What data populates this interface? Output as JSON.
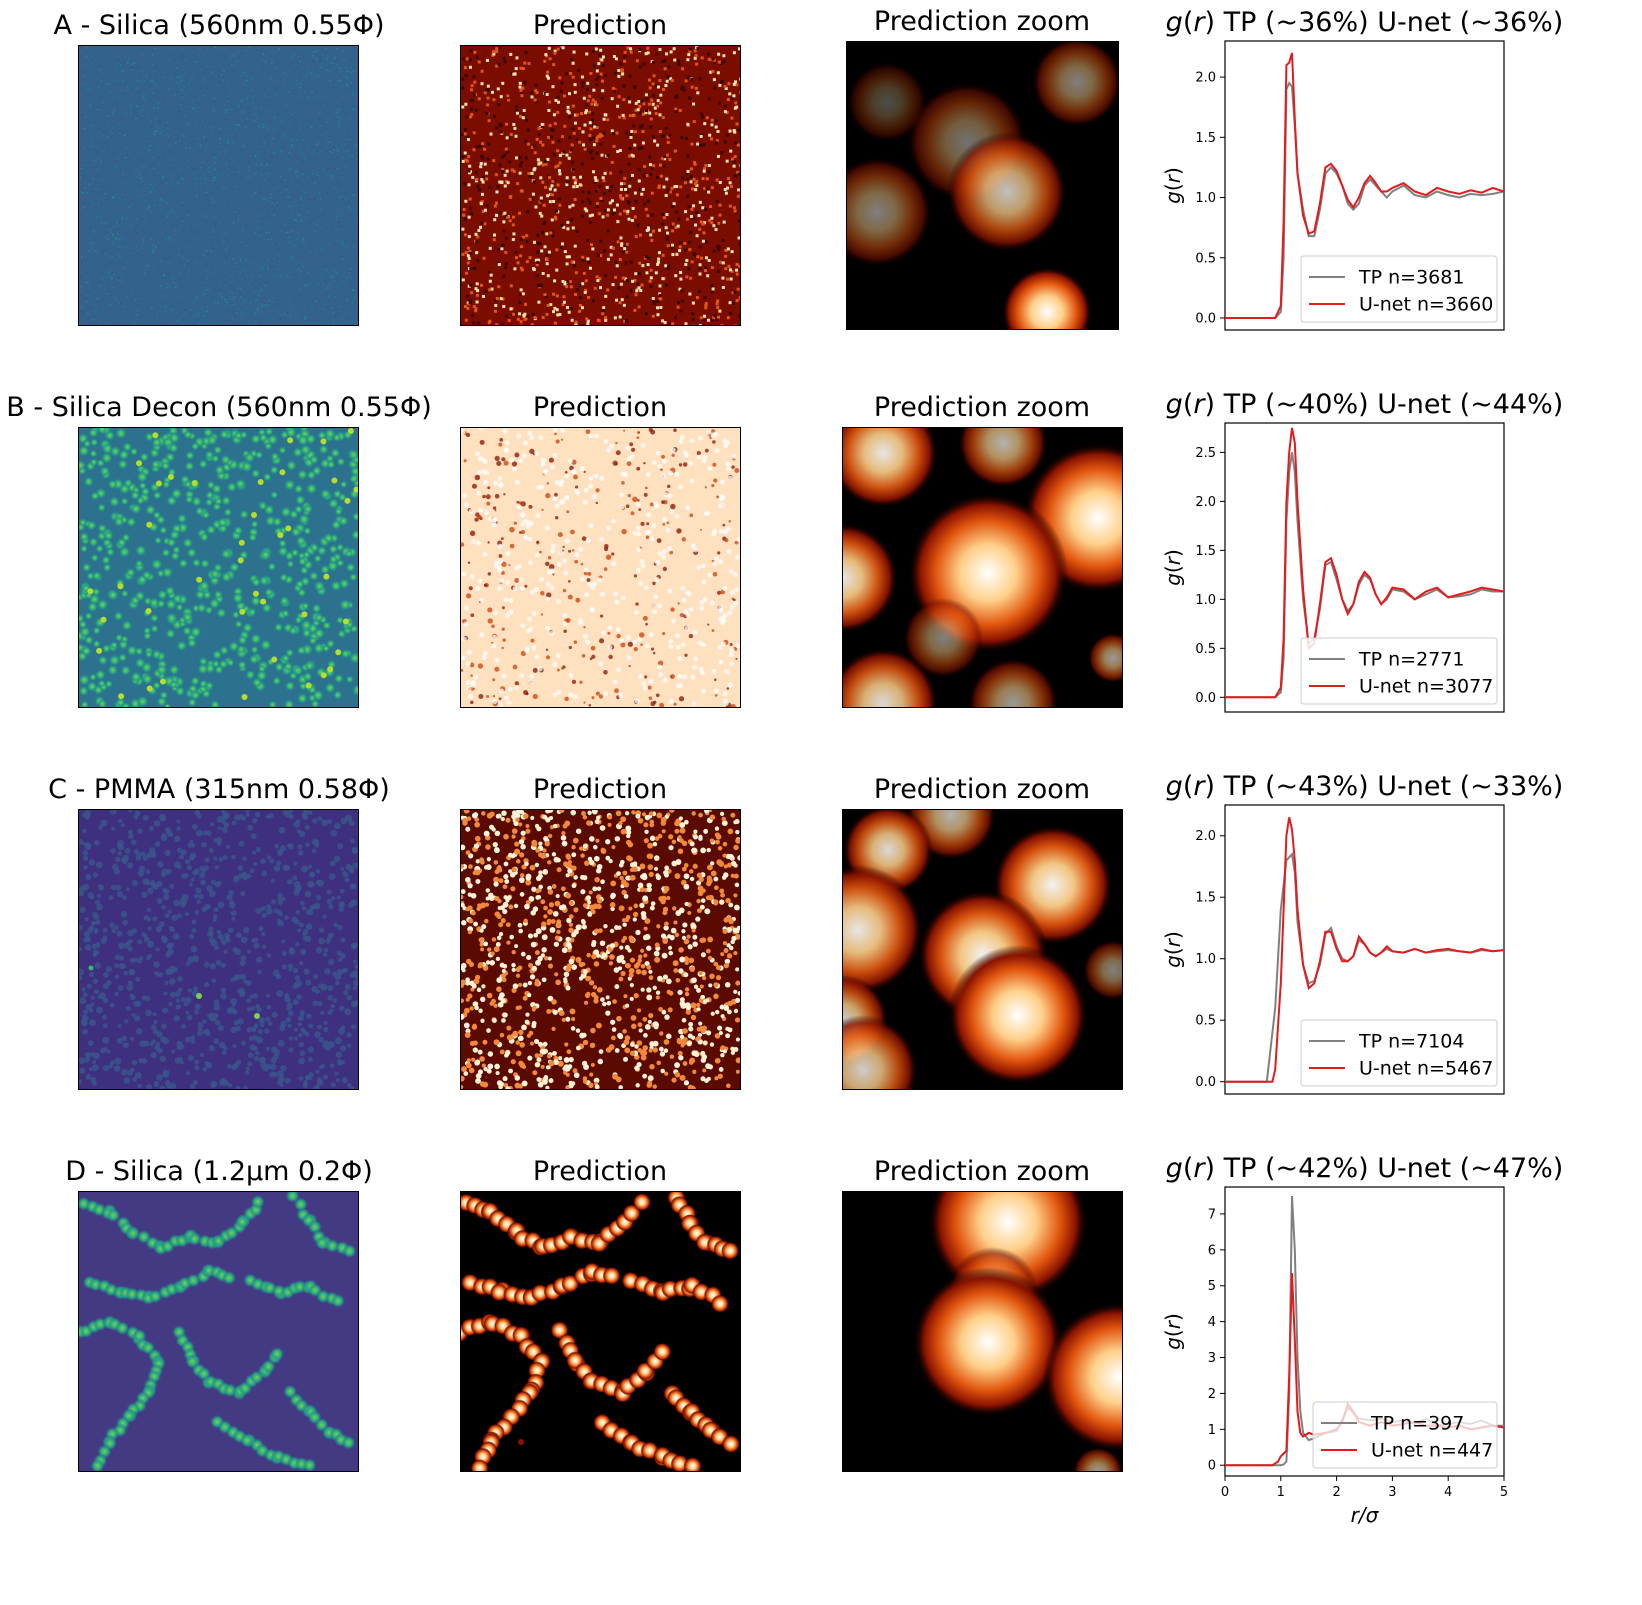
{
  "rows": [
    {
      "row_title": "A - Silica (560nm 0.55Φ)",
      "prediction_title": "Prediction",
      "zoom_title": "Prediction zoom",
      "gr_title": "g(r) TP (~36%) U-net (~36%)",
      "raw_style": "noisy",
      "pred_style": "grainy",
      "zoom_style": "dim"
    },
    {
      "row_title": "B - Silica Decon (560nm 0.55Φ)",
      "prediction_title": "Prediction",
      "zoom_title": "Prediction zoom",
      "gr_title": "g(r) TP (~40%) U-net (~44%)",
      "raw_style": "dense-bright",
      "pred_style": "dense-light",
      "zoom_style": "blobs"
    },
    {
      "row_title": "C - PMMA (315nm 0.58Φ)",
      "prediction_title": "Prediction",
      "zoom_title": "Prediction zoom",
      "gr_title": "g(r) TP (~43%) U-net (~33%)",
      "raw_style": "dense-dim",
      "pred_style": "dense-mixed",
      "zoom_style": "blobs"
    },
    {
      "row_title": "D - Silica (1.2µm 0.2Φ)",
      "prediction_title": "Prediction",
      "zoom_title": "Prediction zoom",
      "gr_title": "g(r) TP (~42%) U-net (~47%)",
      "raw_style": "chains",
      "pred_style": "chains",
      "zoom_style": "chain-blobs"
    }
  ],
  "colors": {
    "tp": "#808080",
    "unet": "#e41a1c",
    "viridis_bg": "#3b528b",
    "fire_dark": "#000000"
  },
  "chart_data": [
    {
      "type": "line",
      "title": "g(r) TP (~36%) U-net (~36%)",
      "xlabel": "",
      "ylabel": "g(r)",
      "xlim": [
        0,
        5
      ],
      "ylim": [
        -0.1,
        2.3
      ],
      "yticks": [
        "0.0",
        "0.5",
        "1.0",
        "1.5",
        "2.0"
      ],
      "ytick_values": [
        0,
        0.5,
        1.0,
        1.5,
        2.0
      ],
      "legend_position": "lower-right",
      "series": [
        {
          "name": "TP n=3681",
          "color": "#808080",
          "x": [
            0,
            0.9,
            1.0,
            1.05,
            1.1,
            1.15,
            1.2,
            1.25,
            1.3,
            1.4,
            1.5,
            1.6,
            1.7,
            1.8,
            1.9,
            2.0,
            2.1,
            2.2,
            2.3,
            2.4,
            2.5,
            2.6,
            2.7,
            2.8,
            2.9,
            3.0,
            3.2,
            3.4,
            3.6,
            3.8,
            4.0,
            4.2,
            4.4,
            4.6,
            4.8,
            5.0
          ],
          "y": [
            0,
            0,
            0.05,
            0.5,
            1.9,
            1.95,
            1.92,
            1.6,
            1.2,
            0.9,
            0.68,
            0.68,
            0.9,
            1.2,
            1.25,
            1.2,
            1.1,
            0.95,
            0.9,
            0.95,
            1.1,
            1.15,
            1.1,
            1.05,
            1.0,
            1.05,
            1.1,
            1.02,
            1.0,
            1.05,
            1.02,
            1.0,
            1.03,
            1.02,
            1.03,
            1.05
          ]
        },
        {
          "name": "U-net n=3660",
          "color": "#e41a1c",
          "x": [
            0,
            0.9,
            1.0,
            1.05,
            1.1,
            1.15,
            1.2,
            1.25,
            1.3,
            1.4,
            1.5,
            1.6,
            1.7,
            1.8,
            1.9,
            2.0,
            2.1,
            2.2,
            2.3,
            2.4,
            2.5,
            2.6,
            2.7,
            2.8,
            2.9,
            3.0,
            3.2,
            3.4,
            3.6,
            3.8,
            4.0,
            4.2,
            4.4,
            4.6,
            4.8,
            5.0
          ],
          "y": [
            0,
            0,
            0.1,
            0.8,
            2.1,
            2.12,
            2.2,
            1.65,
            1.2,
            0.85,
            0.7,
            0.72,
            0.95,
            1.25,
            1.28,
            1.22,
            1.1,
            0.98,
            0.92,
            1.0,
            1.12,
            1.18,
            1.12,
            1.05,
            1.05,
            1.08,
            1.12,
            1.05,
            1.02,
            1.08,
            1.05,
            1.03,
            1.06,
            1.04,
            1.08,
            1.05
          ]
        }
      ]
    },
    {
      "type": "line",
      "title": "g(r) TP (~40%) U-net (~44%)",
      "xlabel": "",
      "ylabel": "g(r)",
      "xlim": [
        0,
        5
      ],
      "ylim": [
        -0.15,
        2.8
      ],
      "yticks": [
        "0.0",
        "0.5",
        "1.0",
        "1.5",
        "2.0",
        "2.5"
      ],
      "ytick_values": [
        0,
        0.5,
        1.0,
        1.5,
        2.0,
        2.5
      ],
      "legend_position": "lower-right",
      "series": [
        {
          "name": "TP n=2771",
          "color": "#808080",
          "x": [
            0,
            0.9,
            1.0,
            1.05,
            1.1,
            1.15,
            1.2,
            1.25,
            1.3,
            1.4,
            1.5,
            1.6,
            1.7,
            1.8,
            1.9,
            2.0,
            2.1,
            2.2,
            2.3,
            2.4,
            2.5,
            2.6,
            2.7,
            2.8,
            2.9,
            3.0,
            3.2,
            3.4,
            3.6,
            3.8,
            4.0,
            4.2,
            4.4,
            4.6,
            4.8,
            5.0
          ],
          "y": [
            0,
            0,
            0.05,
            0.4,
            1.8,
            2.3,
            2.5,
            2.3,
            1.8,
            1.0,
            0.55,
            0.6,
            0.9,
            1.35,
            1.38,
            1.2,
            1.0,
            0.88,
            0.95,
            1.15,
            1.25,
            1.2,
            1.05,
            0.95,
            1.0,
            1.1,
            1.08,
            1.0,
            1.05,
            1.1,
            1.02,
            1.03,
            1.05,
            1.1,
            1.08,
            1.08
          ]
        },
        {
          "name": "U-net n=3077",
          "color": "#e41a1c",
          "x": [
            0,
            0.9,
            1.0,
            1.05,
            1.1,
            1.15,
            1.2,
            1.25,
            1.3,
            1.4,
            1.5,
            1.6,
            1.7,
            1.8,
            1.9,
            2.0,
            2.1,
            2.2,
            2.3,
            2.4,
            2.5,
            2.6,
            2.7,
            2.8,
            2.9,
            3.0,
            3.2,
            3.4,
            3.6,
            3.8,
            4.0,
            4.2,
            4.4,
            4.6,
            4.8,
            5.0
          ],
          "y": [
            0,
            0,
            0.1,
            0.6,
            2.0,
            2.5,
            2.75,
            2.6,
            2.0,
            1.1,
            0.5,
            0.55,
            0.95,
            1.38,
            1.42,
            1.25,
            1.0,
            0.85,
            0.95,
            1.18,
            1.28,
            1.22,
            1.05,
            0.95,
            1.02,
            1.12,
            1.1,
            1.0,
            1.08,
            1.12,
            1.02,
            1.05,
            1.08,
            1.12,
            1.1,
            1.08
          ]
        }
      ]
    },
    {
      "type": "line",
      "title": "g(r) TP (~43%) U-net (~33%)",
      "xlabel": "",
      "ylabel": "g(r)",
      "xlim": [
        0,
        5
      ],
      "ylim": [
        -0.1,
        2.25
      ],
      "yticks": [
        "0.0",
        "0.5",
        "1.0",
        "1.5",
        "2.0"
      ],
      "ytick_values": [
        0,
        0.5,
        1.0,
        1.5,
        2.0
      ],
      "legend_position": "lower-right",
      "series": [
        {
          "name": "TP n=7104",
          "color": "#808080",
          "x": [
            0,
            0.75,
            0.8,
            0.9,
            1.0,
            1.1,
            1.2,
            1.25,
            1.3,
            1.4,
            1.5,
            1.6,
            1.7,
            1.8,
            1.9,
            2.0,
            2.1,
            2.2,
            2.3,
            2.4,
            2.5,
            2.6,
            2.7,
            2.8,
            2.9,
            3.0,
            3.2,
            3.4,
            3.6,
            3.8,
            4.0,
            4.2,
            4.4,
            4.6,
            4.8,
            5.0
          ],
          "y": [
            0,
            0,
            0.2,
            0.6,
            1.4,
            1.8,
            1.85,
            1.7,
            1.3,
            0.95,
            0.8,
            0.82,
            0.95,
            1.2,
            1.25,
            1.1,
            1.0,
            0.98,
            1.02,
            1.15,
            1.12,
            1.05,
            1.02,
            1.05,
            1.08,
            1.06,
            1.05,
            1.08,
            1.05,
            1.06,
            1.07,
            1.06,
            1.05,
            1.07,
            1.06,
            1.07
          ]
        },
        {
          "name": "U-net n=5467",
          "color": "#e41a1c",
          "x": [
            0,
            0.85,
            0.9,
            1.0,
            1.1,
            1.15,
            1.2,
            1.25,
            1.3,
            1.4,
            1.5,
            1.6,
            1.7,
            1.8,
            1.9,
            2.0,
            2.1,
            2.2,
            2.3,
            2.4,
            2.5,
            2.6,
            2.7,
            2.8,
            2.9,
            3.0,
            3.2,
            3.4,
            3.6,
            3.8,
            4.0,
            4.2,
            4.4,
            4.6,
            4.8,
            5.0
          ],
          "y": [
            0,
            0,
            0.1,
            0.8,
            2.0,
            2.15,
            2.05,
            1.8,
            1.4,
            0.95,
            0.76,
            0.8,
            0.98,
            1.22,
            1.22,
            1.08,
            0.98,
            0.98,
            1.02,
            1.18,
            1.12,
            1.05,
            1.02,
            1.05,
            1.1,
            1.06,
            1.05,
            1.08,
            1.05,
            1.07,
            1.08,
            1.06,
            1.05,
            1.08,
            1.06,
            1.07
          ]
        }
      ]
    },
    {
      "type": "line",
      "title": "g(r) TP (~42%) U-net (~47%)",
      "xlabel": "r/σ",
      "ylabel": "g(r)",
      "xlim": [
        0,
        5
      ],
      "ylim": [
        -0.3,
        7.75
      ],
      "xticks": [
        "0",
        "1",
        "2",
        "3",
        "4",
        "5"
      ],
      "xtick_values": [
        0,
        1,
        2,
        3,
        4,
        5
      ],
      "yticks": [
        "0",
        "1",
        "2",
        "3",
        "4",
        "5",
        "6",
        "7"
      ],
      "ytick_values": [
        0,
        1,
        2,
        3,
        4,
        5,
        6,
        7
      ],
      "legend_position": "lower-right",
      "series": [
        {
          "name": "TP n=397",
          "color": "#808080",
          "x": [
            0,
            1.0,
            1.05,
            1.1,
            1.15,
            1.2,
            1.25,
            1.3,
            1.35,
            1.4,
            1.5,
            1.6,
            1.8,
            2.0,
            2.2,
            2.4,
            2.6,
            2.8,
            3.0,
            3.2,
            3.4,
            3.6,
            3.8,
            4.0,
            4.2,
            4.4,
            4.6,
            4.8,
            5.0
          ],
          "y": [
            0,
            0,
            0.02,
            0.1,
            2.0,
            7.5,
            6.0,
            3.0,
            1.5,
            0.9,
            0.7,
            0.75,
            0.9,
            0.95,
            1.6,
            1.3,
            1.25,
            1.3,
            1.2,
            1.25,
            1.15,
            1.3,
            1.1,
            1.15,
            1.2,
            1.15,
            1.25,
            1.1,
            1.1
          ]
        },
        {
          "name": "U-net n=447",
          "color": "#e41a1c",
          "x": [
            0,
            0.85,
            0.95,
            1.0,
            1.1,
            1.15,
            1.2,
            1.25,
            1.3,
            1.35,
            1.4,
            1.5,
            1.6,
            1.8,
            2.0,
            2.1,
            2.2,
            2.3,
            2.4,
            2.6,
            2.8,
            3.0,
            3.2,
            3.4,
            3.6,
            3.8,
            4.0,
            4.2,
            4.4,
            4.6,
            4.8,
            5.0
          ],
          "y": [
            0,
            0,
            0.1,
            0.25,
            0.4,
            2.5,
            5.35,
            3.5,
            1.5,
            0.9,
            0.8,
            0.9,
            0.85,
            0.9,
            1.0,
            1.2,
            1.7,
            1.5,
            1.2,
            1.1,
            1.2,
            1.1,
            1.15,
            1.2,
            1.1,
            1.1,
            1.05,
            1.1,
            1.0,
            1.05,
            1.1,
            1.05
          ]
        }
      ]
    }
  ]
}
